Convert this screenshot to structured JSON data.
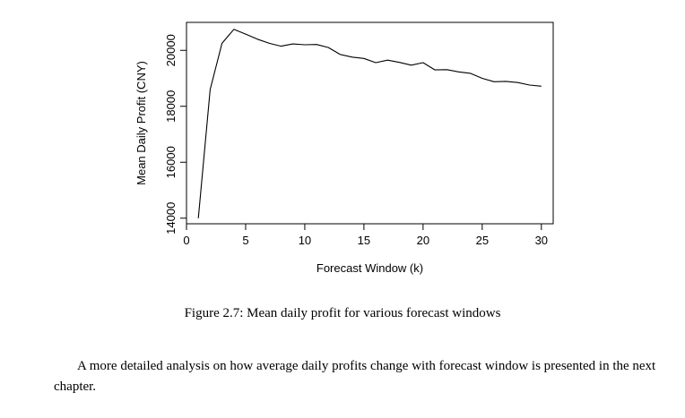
{
  "figure": {
    "caption": "Figure 2.7: Mean daily profit for various forecast windows"
  },
  "paragraph": {
    "text": "A more detailed analysis on how average daily profits change with forecast window is presented in the next chapter."
  },
  "chart_data": {
    "type": "line",
    "title": "",
    "xlabel": "Forecast Window (k)",
    "ylabel": "Mean Daily Profit (CNY)",
    "xlim": [
      0,
      31
    ],
    "ylim": [
      13800,
      21000
    ],
    "xticks": [
      0,
      5,
      10,
      15,
      20,
      25,
      30
    ],
    "yticks": [
      14000,
      16000,
      18000,
      20000
    ],
    "grid": false,
    "legend": "none",
    "series": [
      {
        "x": [
          1,
          2,
          3,
          4,
          5,
          6,
          7,
          8,
          9,
          10,
          11,
          12,
          13,
          14,
          15,
          16,
          17,
          18,
          19,
          20,
          21,
          22,
          23,
          24,
          25,
          26,
          27,
          28,
          29,
          30
        ],
        "y": [
          14000,
          18600,
          20250,
          20750,
          20580,
          20400,
          20250,
          20150,
          20230,
          20200,
          20210,
          20100,
          19850,
          19760,
          19710,
          19560,
          19650,
          19570,
          19470,
          19560,
          19300,
          19310,
          19230,
          19180,
          19000,
          18880,
          18890,
          18850,
          18760,
          18720
        ]
      }
    ]
  }
}
